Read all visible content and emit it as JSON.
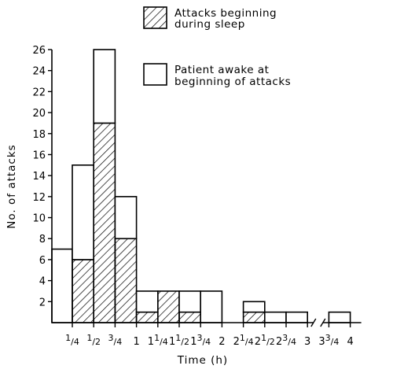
{
  "chart_data": {
    "type": "bar",
    "stacked": true,
    "xlabel": "Time (h)",
    "ylabel": "No. of attacks",
    "ylim": [
      0,
      26
    ],
    "yticks": [
      2,
      4,
      6,
      8,
      10,
      12,
      14,
      16,
      18,
      20,
      22,
      24,
      26
    ],
    "grid": false,
    "legend_position": "top-right",
    "axis_break": {
      "between": [
        "3",
        "3 3/4"
      ]
    },
    "x_tick_labels": [
      {
        "whole": "",
        "num": "1",
        "den": "4"
      },
      {
        "whole": "",
        "num": "1",
        "den": "2"
      },
      {
        "whole": "",
        "num": "3",
        "den": "4"
      },
      {
        "whole": "1",
        "num": "",
        "den": ""
      },
      {
        "whole": "1",
        "num": "1",
        "den": "4"
      },
      {
        "whole": "1",
        "num": "1",
        "den": "2"
      },
      {
        "whole": "1",
        "num": "3",
        "den": "4"
      },
      {
        "whole": "2",
        "num": "",
        "den": ""
      },
      {
        "whole": "2",
        "num": "1",
        "den": "4"
      },
      {
        "whole": "2",
        "num": "1",
        "den": "2"
      },
      {
        "whole": "2",
        "num": "3",
        "den": "4"
      },
      {
        "whole": "3",
        "num": "",
        "den": ""
      },
      {
        "whole": "3",
        "num": "3",
        "den": "4"
      },
      {
        "whole": "4",
        "num": "",
        "den": ""
      }
    ],
    "series": [
      {
        "name": "Attacks beginning during sleep",
        "pattern": "hatched",
        "values": [
          0,
          6,
          19,
          8,
          1,
          3,
          1,
          0,
          1,
          0,
          0,
          0
        ]
      },
      {
        "name": "Patient awake at beginning of attacks",
        "pattern": "plain",
        "values": [
          7,
          9,
          7,
          4,
          2,
          0,
          2,
          3,
          1,
          1,
          1,
          1
        ]
      }
    ]
  }
}
